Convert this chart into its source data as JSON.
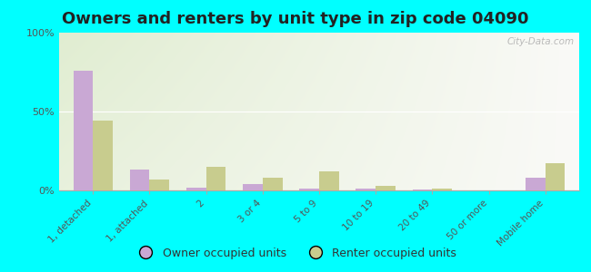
{
  "title": "Owners and renters by unit type in zip code 04090",
  "categories": [
    "1, detached",
    "1, attached",
    "2",
    "3 or 4",
    "5 to 9",
    "10 to 19",
    "20 to 49",
    "50 or more",
    "Mobile home"
  ],
  "owner_values": [
    76,
    13,
    2,
    4,
    1,
    1,
    0.5,
    0.2,
    8
  ],
  "renter_values": [
    44,
    7,
    15,
    8,
    12,
    3,
    1,
    0,
    17
  ],
  "owner_color": "#c9a8d4",
  "renter_color": "#c8cc8e",
  "outer_bg": "#00ffff",
  "title_fontsize": 13,
  "legend_labels": [
    "Owner occupied units",
    "Renter occupied units"
  ],
  "watermark": "City-Data.com",
  "ylim": [
    0,
    100
  ],
  "yticks": [
    0,
    50,
    100
  ],
  "ytick_labels": [
    "0%",
    "50%",
    "100%"
  ],
  "bg_colors": [
    "#c8ddb0",
    "#eef5e4",
    "#f0f8e8",
    "#f5faf2"
  ],
  "bar_width": 0.35
}
